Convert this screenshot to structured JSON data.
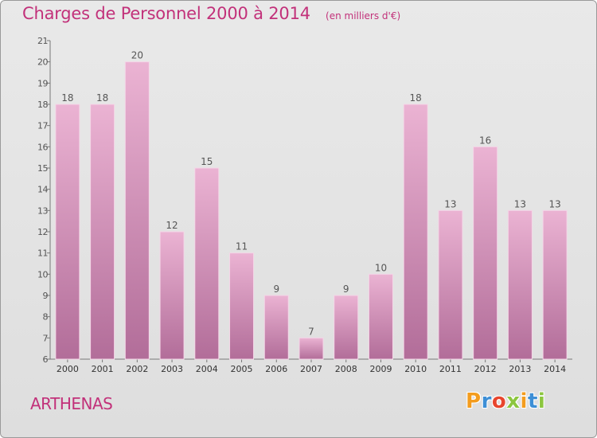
{
  "header": {
    "title": "Charges de Personnel 2000 à 2014",
    "subtitle": "(en milliers d'€)"
  },
  "footer": {
    "commune": "ARTHENAS",
    "logo": "Proxiti",
    "logo_colors": [
      "#f39c1e",
      "#3d8fd6",
      "#e8462e",
      "#8cc63f",
      "#f39c1e",
      "#3d8fd6",
      "#8cc63f"
    ]
  },
  "colors": {
    "bar_top": "#ebb3d3",
    "bar_bottom": "#b26d99",
    "bar_edge": "#f4d6e7",
    "text": "#555555",
    "title": "#c2317a"
  },
  "chart_data": {
    "type": "bar",
    "categories": [
      "2000",
      "2001",
      "2002",
      "2003",
      "2004",
      "2005",
      "2006",
      "2007",
      "2008",
      "2009",
      "2010",
      "2011",
      "2012",
      "2013",
      "2014"
    ],
    "values": [
      18,
      18,
      20,
      12,
      15,
      11,
      9,
      7,
      9,
      10,
      18,
      13,
      16,
      13,
      13
    ],
    "ylim": [
      6,
      21
    ],
    "yticks": [
      6,
      7,
      8,
      9,
      10,
      11,
      12,
      13,
      14,
      15,
      16,
      17,
      18,
      19,
      20,
      21
    ],
    "xlabel": "",
    "ylabel": "",
    "grid": false,
    "data_labels": true
  }
}
